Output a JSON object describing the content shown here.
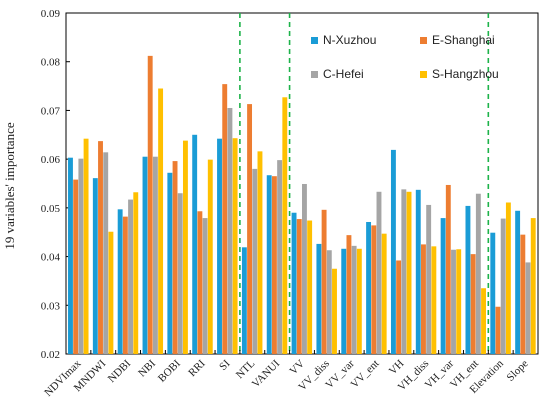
{
  "chart_data": {
    "type": "bar",
    "title": "",
    "xlabel": "",
    "ylabel": "19 variables' importance",
    "ylim": [
      0.02,
      0.09
    ],
    "yticks": [
      "0.02",
      "0.03",
      "0.04",
      "0.05",
      "0.06",
      "0.07",
      "0.08",
      "0.09"
    ],
    "grid": false,
    "legend_position": "top-right",
    "categories": [
      "NDVImax",
      "MNDWI",
      "NDBI",
      "NBI",
      "BOBI",
      "RRI",
      "SI",
      "NTL",
      "VANUI",
      "VV",
      "VV_diss",
      "VV_var",
      "VV_ent",
      "VH",
      "VH_diss",
      "VH_var",
      "VH_ent",
      "Elevation",
      "Slope"
    ],
    "separators_after_index": [
      6,
      8,
      16
    ],
    "series": [
      {
        "name": "N-Xuzhou",
        "color": "#1a9cd6",
        "values": [
          0.0603,
          0.0561,
          0.0497,
          0.0605,
          0.0572,
          0.065,
          0.0642,
          0.0419,
          0.0567,
          0.049,
          0.0426,
          0.0416,
          0.0471,
          0.0619,
          0.0537,
          0.0479,
          0.0504,
          0.0449,
          0.0494
        ]
      },
      {
        "name": "E-Shanghai",
        "color": "#ed7d31",
        "values": [
          0.0558,
          0.0637,
          0.0482,
          0.0812,
          0.0596,
          0.0493,
          0.0754,
          0.0713,
          0.0565,
          0.0477,
          0.0496,
          0.0444,
          0.0464,
          0.0392,
          0.0425,
          0.0547,
          0.0405,
          0.0297,
          0.0445
        ]
      },
      {
        "name": "C-Hefei",
        "color": "#a5a5a5",
        "values": [
          0.0601,
          0.0614,
          0.0517,
          0.0605,
          0.053,
          0.0479,
          0.0705,
          0.058,
          0.0598,
          0.0549,
          0.0413,
          0.0422,
          0.0533,
          0.0538,
          0.0506,
          0.0414,
          0.0529,
          0.0478,
          0.0388
        ]
      },
      {
        "name": "S-Hangzhou",
        "color": "#ffc000",
        "values": [
          0.0642,
          0.0451,
          0.0532,
          0.0745,
          0.0638,
          0.0599,
          0.0643,
          0.0616,
          0.0727,
          0.0474,
          0.0375,
          0.0416,
          0.0447,
          0.0533,
          0.0421,
          0.0415,
          0.0335,
          0.0511,
          0.0479
        ]
      }
    ]
  }
}
